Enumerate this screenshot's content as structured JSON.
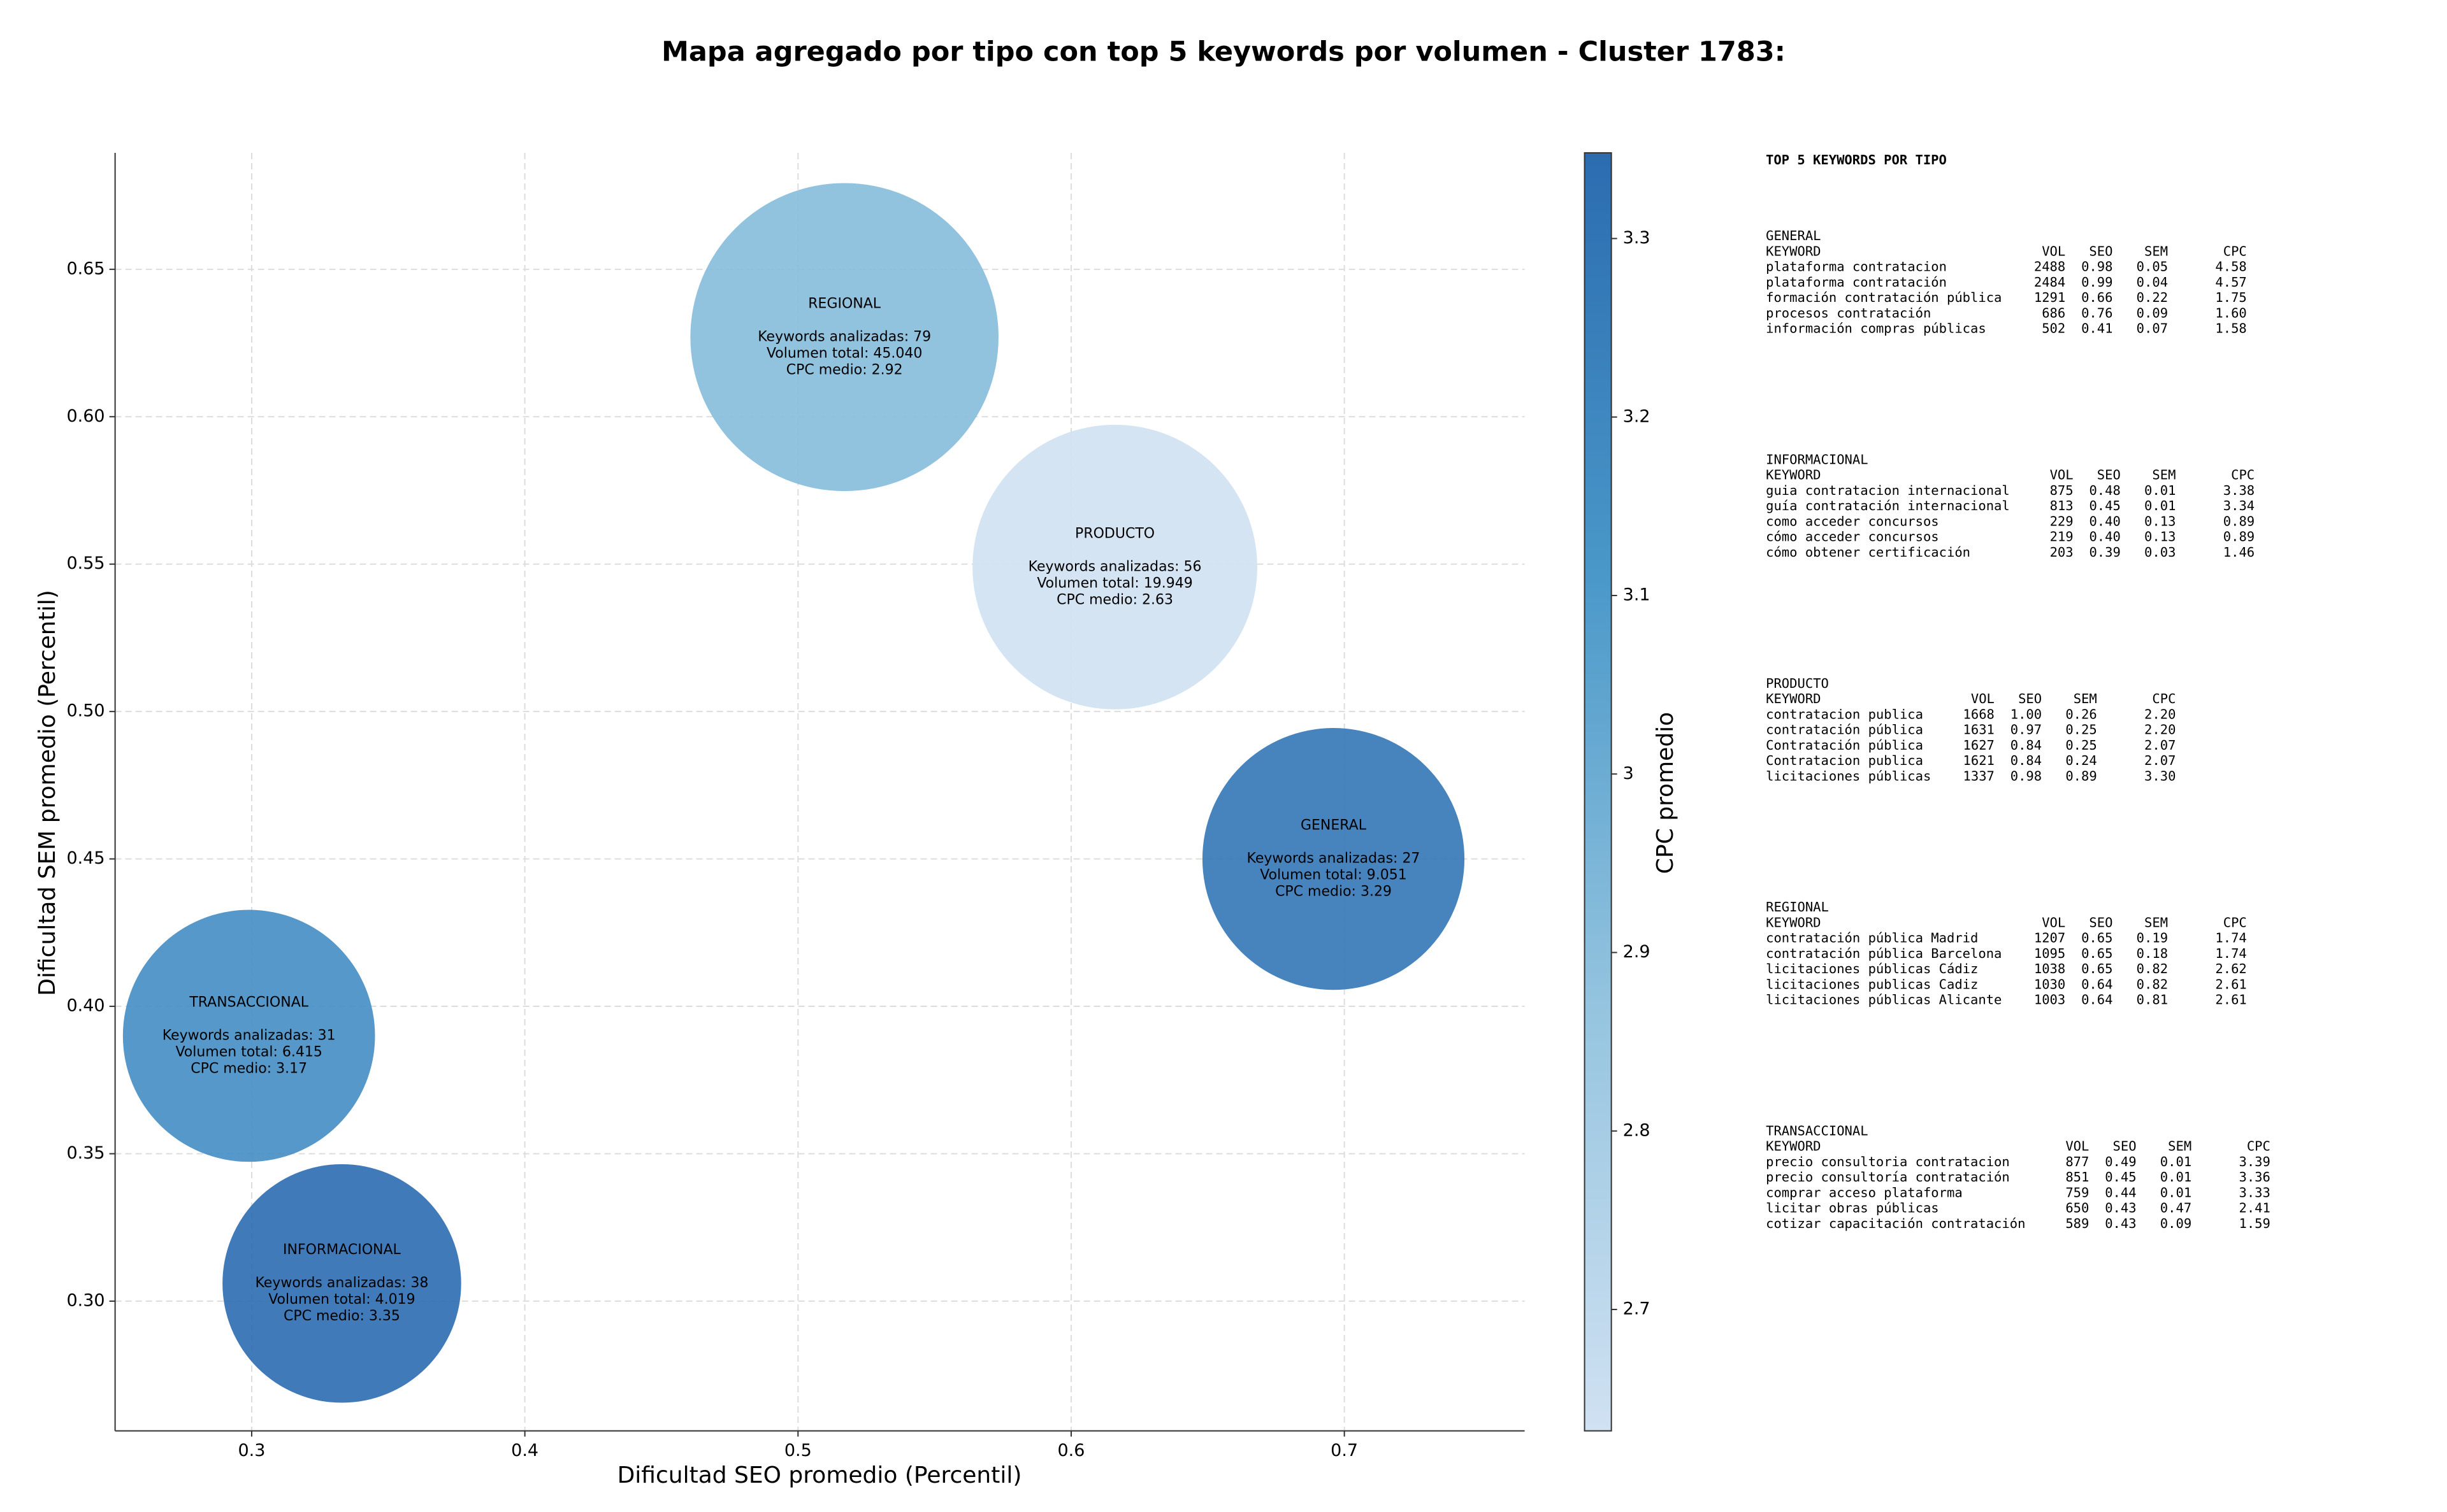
{
  "chart_data": {
    "type": "bubble",
    "title": "Mapa agregado por tipo con top 5 keywords por volumen - Cluster 1783:",
    "x_label": "Dificultad SEO promedio (Percentil)",
    "y_label": "Dificultad SEM promedio (Percentil)",
    "categories": [
      "REGIONAL",
      "PRODUCTO",
      "GENERAL",
      "TRANSACCIONAL",
      "INFORMACIONAL"
    ],
    "x": [
      0.517,
      0.616,
      0.696,
      0.299,
      0.333
    ],
    "values": [
      0.627,
      0.549,
      0.45,
      0.39,
      0.306
    ],
    "sizes": [
      45040,
      19949,
      9051,
      6415,
      4019
    ],
    "color_values": [
      2.92,
      2.63,
      3.29,
      3.17,
      3.35
    ],
    "bubble_labels": [
      [
        "Keywords analizadas: 79",
        "Volumen total: 45.040",
        "CPC medio: 2.92"
      ],
      [
        "Keywords analizadas: 56",
        "Volumen total: 19.949",
        "CPC medio: 2.63"
      ],
      [
        "Keywords analizadas: 27",
        "Volumen total: 9.051",
        "CPC medio: 3.29"
      ],
      [
        "Keywords analizadas: 31",
        "Volumen total: 6.415",
        "CPC medio: 3.17"
      ],
      [
        "Keywords analizadas: 38",
        "Volumen total: 4.019",
        "CPC medio: 3.35"
      ]
    ],
    "alpha": 0.9,
    "xlim": [
      0.25,
      0.766
    ],
    "xticks": [
      0.3,
      0.4,
      0.5,
      0.6,
      0.7
    ],
    "ylim": [
      0.256,
      0.6895
    ],
    "yticks": [
      {
        "value": 0.3,
        "label": "0.30"
      },
      {
        "value": 0.35,
        "label": "0.35"
      },
      {
        "value": 0.4,
        "label": "0.40"
      },
      {
        "value": 0.45,
        "label": "0.45"
      },
      {
        "value": 0.5,
        "label": "0.50"
      },
      {
        "value": 0.55,
        "label": "0.55"
      },
      {
        "value": 0.6,
        "label": "0.60"
      },
      {
        "value": 0.65,
        "label": "0.65"
      }
    ],
    "grid": true,
    "colorbar": {
      "label": "CPC promedio",
      "lim": [
        2.632,
        3.348
      ],
      "ticks": [
        2.7,
        2.8,
        2.9,
        3.0,
        3.1,
        3.2,
        3.3
      ],
      "colormap": [
        "#d0e1f2",
        "#94c4df",
        "#4a98c9",
        "#2b6cb0"
      ]
    }
  },
  "side_panel": {
    "title": "TOP 5 KEYWORDS POR TIPO",
    "header": [
      "KEYWORD",
      "VOL",
      "SEO",
      "SEM",
      "CPC"
    ],
    "tables": [
      {
        "name": "GENERAL",
        "rows": [
          [
            "plataforma contratacion",
            "2488",
            "0.98",
            "0.05",
            "4.58"
          ],
          [
            "plataforma contratación",
            "2484",
            "0.99",
            "0.04",
            "4.57"
          ],
          [
            "formación contratación pública",
            "1291",
            "0.66",
            "0.22",
            "1.75"
          ],
          [
            "procesos contratación",
            "686",
            "0.76",
            "0.09",
            "1.60"
          ],
          [
            "información compras públicas",
            "502",
            "0.41",
            "0.07",
            "1.58"
          ]
        ]
      },
      {
        "name": "INFORMACIONAL",
        "rows": [
          [
            "guia contratacion internacional",
            "875",
            "0.48",
            "0.01",
            "3.38"
          ],
          [
            "guía contratación internacional",
            "813",
            "0.45",
            "0.01",
            "3.34"
          ],
          [
            "como acceder concursos",
            "229",
            "0.40",
            "0.13",
            "0.89"
          ],
          [
            "cómo acceder concursos",
            "219",
            "0.40",
            "0.13",
            "0.89"
          ],
          [
            "cómo obtener certificación",
            "203",
            "0.39",
            "0.03",
            "1.46"
          ]
        ]
      },
      {
        "name": "PRODUCTO",
        "rows": [
          [
            "contratacion publica",
            "1668",
            "1.00",
            "0.26",
            "2.20"
          ],
          [
            "contratación pública",
            "1631",
            "0.97",
            "0.25",
            "2.20"
          ],
          [
            "Contratación pública",
            "1627",
            "0.84",
            "0.25",
            "2.07"
          ],
          [
            "Contratacion publica",
            "1621",
            "0.84",
            "0.24",
            "2.07"
          ],
          [
            "licitaciones públicas",
            "1337",
            "0.98",
            "0.89",
            "3.30"
          ]
        ]
      },
      {
        "name": "REGIONAL",
        "rows": [
          [
            "contratación pública Madrid",
            "1207",
            "0.65",
            "0.19",
            "1.74"
          ],
          [
            "contratación pública Barcelona",
            "1095",
            "0.65",
            "0.18",
            "1.74"
          ],
          [
            "licitaciones públicas Cádiz",
            "1038",
            "0.65",
            "0.82",
            "2.62"
          ],
          [
            "licitaciones publicas Cadiz",
            "1030",
            "0.64",
            "0.82",
            "2.61"
          ],
          [
            "licitaciones públicas Alicante",
            "1003",
            "0.64",
            "0.81",
            "2.61"
          ]
        ]
      },
      {
        "name": "TRANSACCIONAL",
        "rows": [
          [
            "precio consultoria contratacion",
            "877",
            "0.49",
            "0.01",
            "3.39"
          ],
          [
            "precio consultoría contratación",
            "851",
            "0.45",
            "0.01",
            "3.36"
          ],
          [
            "comprar acceso plataforma",
            "759",
            "0.44",
            "0.01",
            "3.33"
          ],
          [
            "licitar obras públicas",
            "650",
            "0.43",
            "0.47",
            "2.41"
          ],
          [
            "cotizar capacitación contratación",
            "589",
            "0.43",
            "0.09",
            "1.59"
          ]
        ]
      }
    ]
  }
}
